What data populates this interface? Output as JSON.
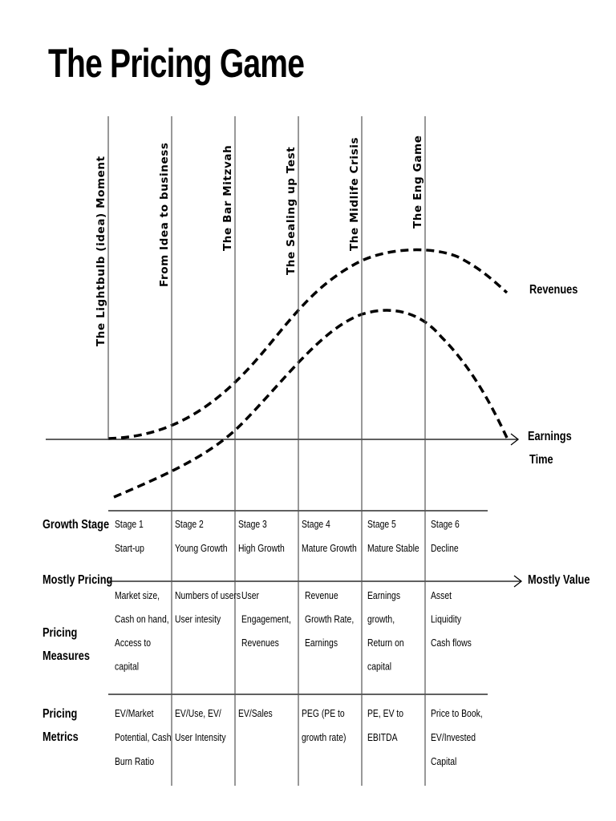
{
  "title": "The Pricing Game",
  "milestones": [
    "The Lightbulb (idea) Moment",
    "From Idea to business",
    "The Bar Mitzvah",
    "The Sealing up Test",
    "The Midlife Crisis",
    "The Eng Game"
  ],
  "curve_labels": {
    "revenues": "Revenues",
    "earnings": "Earnings",
    "time": "Time"
  },
  "row_labels": {
    "growth_stage": "Growth Stage",
    "mostly_pricing": "Mostly Pricing",
    "mostly_value": "Mostly Value",
    "pricing_measures": [
      "Pricing",
      "Measures"
    ],
    "pricing_metrics": [
      "Pricing",
      "Metrics"
    ]
  },
  "stages": [
    {
      "stage": "Stage 1",
      "name": "Start-up",
      "measures": [
        "Market size,",
        "Cash on hand,",
        "Access to",
        "capital"
      ],
      "metrics": [
        "EV/Market",
        "Potential, Cash",
        "Burn Ratio"
      ]
    },
    {
      "stage": "Stage 2",
      "name": "Young Growth",
      "measures": [
        "Numbers of users",
        "User intesity"
      ],
      "metrics": [
        "EV/Use, EV/",
        "User Intensity"
      ]
    },
    {
      "stage": "Stage 3",
      "name": "High Growth",
      "measures": [
        "User",
        "Engagement,",
        "Revenues"
      ],
      "metrics": [
        "EV/Sales"
      ]
    },
    {
      "stage": "Stage 4",
      "name": "Mature Growth",
      "measures": [
        "Revenue",
        "Growth Rate,",
        "Earnings"
      ],
      "metrics": [
        "PEG (PE to",
        "growth rate)"
      ]
    },
    {
      "stage": "Stage 5",
      "name": "Mature Stable",
      "measures": [
        "Earnings",
        "growth,",
        "Return on",
        "capital"
      ],
      "metrics": [
        "PE, EV to",
        "EBITDA"
      ]
    },
    {
      "stage": "Stage 6",
      "name": "Decline",
      "measures": [
        "Asset",
        "Liquidity",
        "Cash flows"
      ],
      "metrics": [
        "Price to Book,",
        "EV/Invested",
        "Capital"
      ]
    }
  ]
}
